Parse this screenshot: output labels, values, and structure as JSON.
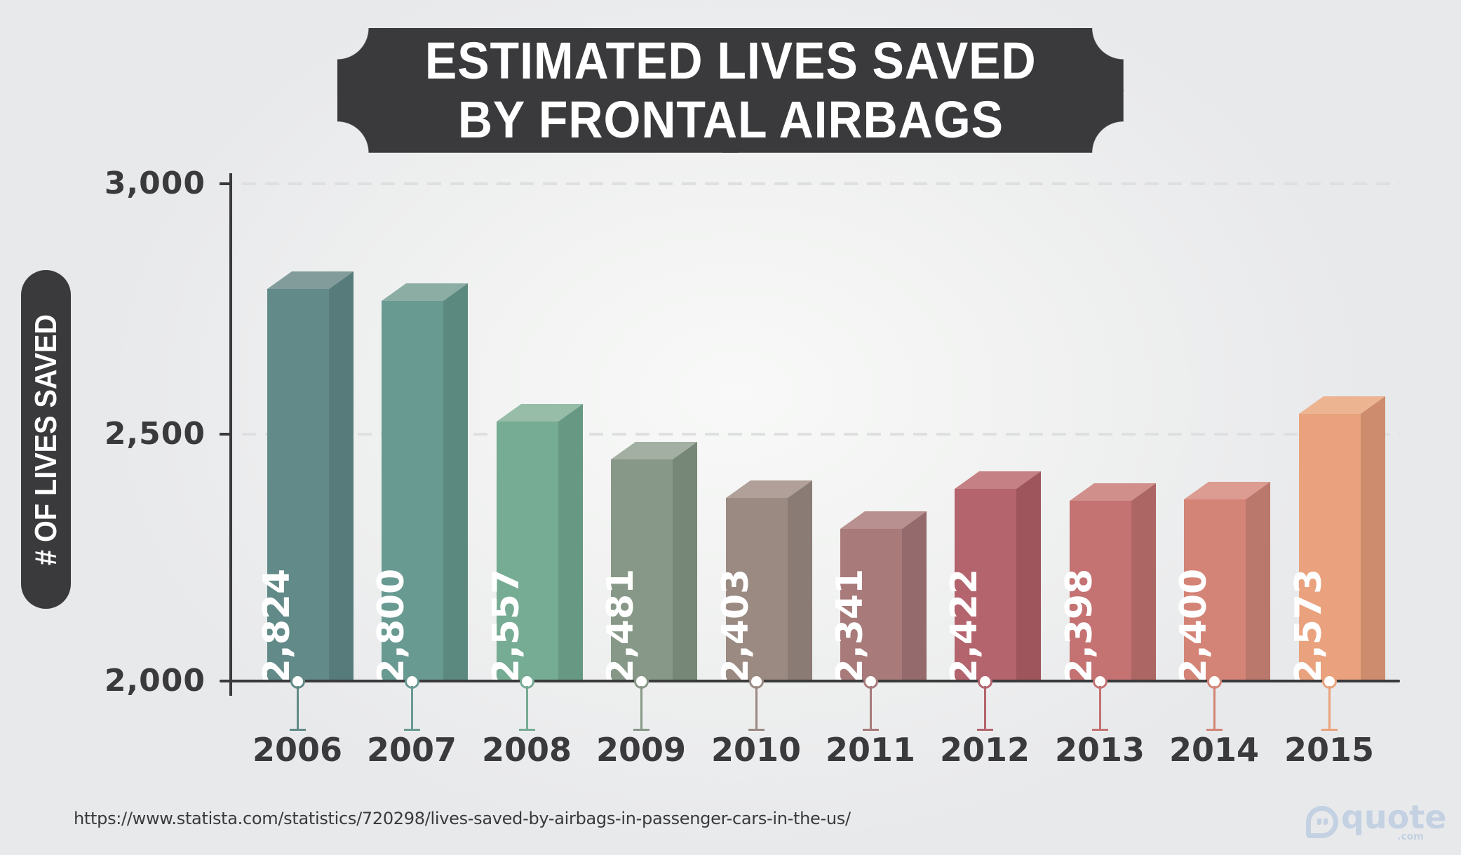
{
  "title": {
    "line1": "ESTIMATED LIVES SAVED",
    "line2": "BY FRONTAL AIRBAGS"
  },
  "y_axis": {
    "label": "# OF LIVES SAVED",
    "ticks": [
      "3,000",
      "2,500",
      "2,000"
    ]
  },
  "source": "https://www.statista.com/statistics/720298/lives-saved-by-airbags-in-passenger-cars-in-the-us/",
  "logo": {
    "word": "quote",
    "suffix": ".com"
  },
  "bars": [
    {
      "year": "2006",
      "label": "2,824",
      "value": 2824,
      "front": "#628a88",
      "side": "#567b7a",
      "top": "#829c9c"
    },
    {
      "year": "2007",
      "label": "2,800",
      "value": 2800,
      "front": "#699a92",
      "side": "#5c897f",
      "top": "#8badA4"
    },
    {
      "year": "2008",
      "label": "2,557",
      "value": 2557,
      "front": "#76ab94",
      "side": "#669883",
      "top": "#97bca8"
    },
    {
      "year": "2009",
      "label": "2,481",
      "value": 2481,
      "front": "#889888",
      "side": "#778777",
      "top": "#a4afa3"
    },
    {
      "year": "2010",
      "label": "2,403",
      "value": 2403,
      "front": "#9b8a82",
      "side": "#8a7b74",
      "top": "#b0a099"
    },
    {
      "year": "2011",
      "label": "2,341",
      "value": 2341,
      "front": "#a87a7a",
      "side": "#946a6c",
      "top": "#b99090"
    },
    {
      "year": "2012",
      "label": "2,422",
      "value": 2422,
      "front": "#b4646d",
      "side": "#9e555c",
      "top": "#c48084"
    },
    {
      "year": "2013",
      "label": "2,398",
      "value": 2398,
      "front": "#c47272",
      "side": "#ac6664",
      "top": "#d08f8b"
    },
    {
      "year": "2014",
      "label": "2,400",
      "value": 2400,
      "front": "#d48477",
      "side": "#ba776b",
      "top": "#dc9c91"
    },
    {
      "year": "2015",
      "label": "2,573",
      "value": 2573,
      "front": "#e9a27d",
      "side": "#cc8c6d",
      "top": "#edb491"
    }
  ],
  "chart_data": {
    "type": "bar",
    "title": "Estimated Lives Saved by Frontal Airbags",
    "categories": [
      "2006",
      "2007",
      "2008",
      "2009",
      "2010",
      "2011",
      "2012",
      "2013",
      "2014",
      "2015"
    ],
    "values": [
      2824,
      2800,
      2557,
      2481,
      2403,
      2341,
      2422,
      2398,
      2400,
      2573
    ],
    "xlabel": "",
    "ylabel": "# of Lives Saved",
    "ylim": [
      2000,
      3000
    ],
    "yticks": [
      2000,
      2500,
      3000
    ],
    "grid": "horizontal dashed at 2,500 and 3,000",
    "legend": "none",
    "data_labels": "value rotated vertically inside each bar",
    "style": "3D columns with per-bar color gradient from teal to orange",
    "source": "https://www.statista.com/statistics/720298/lives-saved-by-airbags-in-passenger-cars-in-the-us/"
  }
}
